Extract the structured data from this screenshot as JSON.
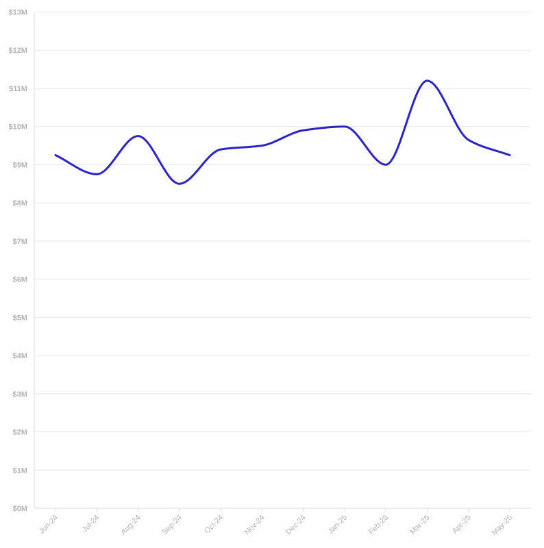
{
  "chart_data": {
    "type": "line",
    "categories": [
      "Jun-24",
      "Jul-24",
      "Aug-24",
      "Sep-24",
      "Oct-24",
      "Nov-24",
      "Dec-24",
      "Jan-25",
      "Feb-25",
      "Mar-25",
      "Apr-25",
      "May-25"
    ],
    "series": [
      {
        "values": [
          9.25,
          8.75,
          9.75,
          8.5,
          9.4,
          9.5,
          9.9,
          10.0,
          9.0,
          11.2,
          9.65,
          9.25
        ],
        "color": "#2b22c7"
      }
    ],
    "ylim": [
      0,
      13
    ],
    "yticks": [
      "$0M",
      "$1M",
      "$2M",
      "$3M",
      "$4M",
      "$5M",
      "$6M",
      "$7M",
      "$8M",
      "$9M",
      "$10M",
      "$11M",
      "$12M",
      "$13M"
    ],
    "grid": true,
    "legend": "none"
  }
}
